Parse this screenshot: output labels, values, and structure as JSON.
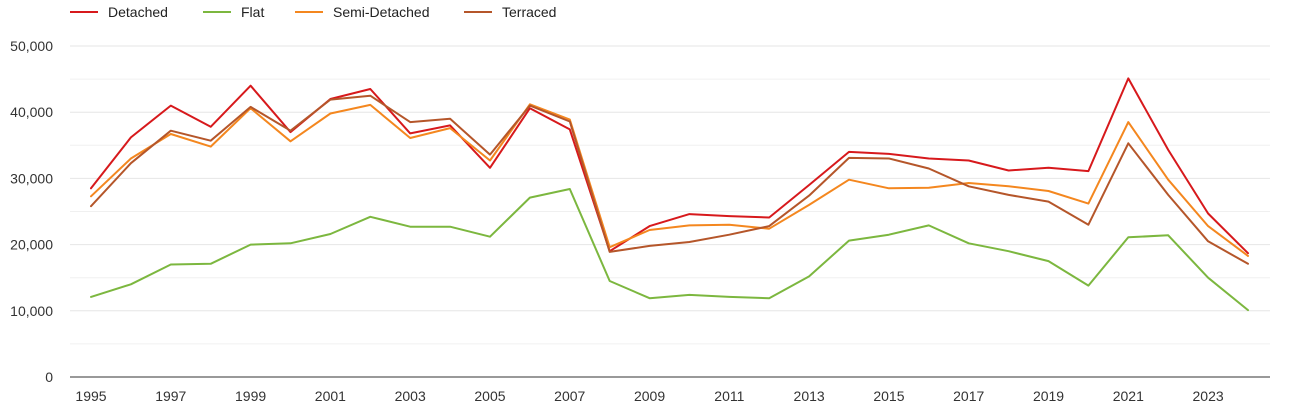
{
  "chart_data": {
    "type": "line",
    "title": "",
    "xlabel": "",
    "ylabel": "",
    "x": [
      1995,
      1996,
      1997,
      1998,
      1999,
      2000,
      2001,
      2002,
      2003,
      2004,
      2005,
      2006,
      2007,
      2008,
      2009,
      2010,
      2011,
      2012,
      2013,
      2014,
      2015,
      2016,
      2017,
      2018,
      2019,
      2020,
      2021,
      2022,
      2023,
      2024
    ],
    "x_tick_labels": [
      "1995",
      "1997",
      "1999",
      "2001",
      "2003",
      "2005",
      "2007",
      "2009",
      "2011",
      "2013",
      "2015",
      "2017",
      "2019",
      "2021",
      "2023"
    ],
    "x_ticks": [
      1995,
      1997,
      1999,
      2001,
      2003,
      2005,
      2007,
      2009,
      2011,
      2013,
      2015,
      2017,
      2019,
      2021,
      2023
    ],
    "y_ticks": [
      0,
      10000,
      20000,
      30000,
      40000,
      50000
    ],
    "y_tick_labels": [
      "0",
      "10,000",
      "20,000",
      "30,000",
      "40,000",
      "50,000"
    ],
    "ylim": [
      0,
      50000
    ],
    "xlim": [
      1995,
      2024
    ],
    "grid": true,
    "legend_position": "top-left",
    "series": [
      {
        "name": "Detached",
        "color": "#d7191c",
        "values": [
          28500,
          36200,
          41000,
          37800,
          44000,
          37000,
          42000,
          43500,
          36800,
          38000,
          31600,
          40600,
          37400,
          19000,
          22800,
          24600,
          24300,
          24100,
          29000,
          34000,
          33700,
          33000,
          32700,
          31200,
          31600,
          31100,
          45100,
          34300,
          24700,
          18700
        ]
      },
      {
        "name": "Flat",
        "color": "#7cb73f",
        "values": [
          12100,
          14000,
          17000,
          17100,
          20000,
          20200,
          21600,
          24200,
          22700,
          22700,
          21200,
          27100,
          28400,
          14500,
          11900,
          12400,
          12100,
          11900,
          15200,
          20600,
          21500,
          22900,
          20200,
          19000,
          17500,
          13800,
          21100,
          21400,
          15000,
          10100
        ]
      },
      {
        "name": "Semi-Detached",
        "color": "#f4871f",
        "values": [
          27300,
          33000,
          36700,
          34800,
          40600,
          35600,
          39800,
          41100,
          36100,
          37600,
          32700,
          41200,
          38900,
          19600,
          22200,
          22900,
          23000,
          22400,
          26000,
          29800,
          28500,
          28600,
          29300,
          28800,
          28100,
          26200,
          38500,
          29800,
          22800,
          18300
        ]
      },
      {
        "name": "Terraced",
        "color": "#b5562a",
        "values": [
          25800,
          32300,
          37200,
          35700,
          40800,
          37200,
          41900,
          42500,
          38500,
          39000,
          33600,
          41000,
          38600,
          18900,
          19800,
          20400,
          21500,
          22800,
          27400,
          33100,
          33000,
          31500,
          28800,
          27500,
          26500,
          23000,
          35300,
          27500,
          20500,
          17100
        ]
      }
    ]
  }
}
